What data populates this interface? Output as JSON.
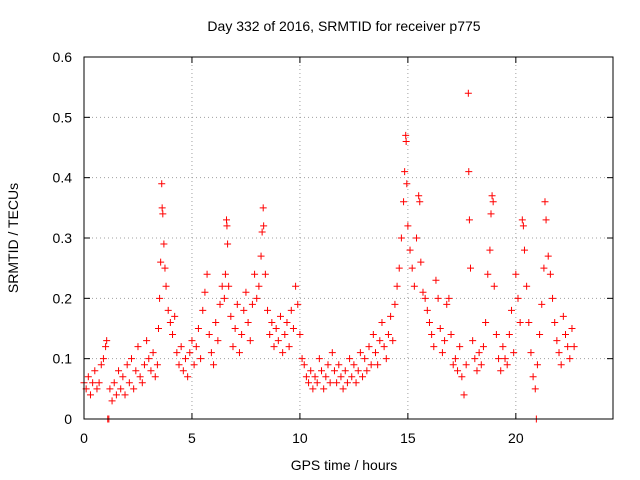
{
  "chart_data": {
    "type": "scatter",
    "title": "Day 332 of 2016, SRMTID for receiver p775",
    "xlabel": "GPS time / hours",
    "ylabel": "SRMTID / TECUs",
    "xlim": [
      0,
      24.5
    ],
    "ylim": [
      0,
      0.6
    ],
    "xticks": [
      0,
      5,
      10,
      15,
      20
    ],
    "xtick_labels": [
      "0",
      "5",
      "10",
      "15",
      "20"
    ],
    "yticks": [
      0,
      0.1,
      0.2,
      0.3,
      0.4,
      0.5,
      0.6
    ],
    "ytick_labels": [
      "0",
      "0.1",
      "0.2",
      "0.3",
      "0.4",
      "0.5",
      "0.6"
    ],
    "grid": true,
    "marker": "+",
    "color": "#ff0000",
    "series": [
      {
        "name": "SRMTID",
        "points": [
          [
            0.0,
            0.06
          ],
          [
            0.1,
            0.05
          ],
          [
            0.2,
            0.07
          ],
          [
            0.3,
            0.04
          ],
          [
            0.4,
            0.06
          ],
          [
            0.5,
            0.08
          ],
          [
            0.6,
            0.05
          ],
          [
            0.7,
            0.06
          ],
          [
            0.8,
            0.09
          ],
          [
            0.9,
            0.1
          ],
          [
            1.0,
            0.12
          ],
          [
            1.05,
            0.13
          ],
          [
            1.1,
            0.0
          ],
          [
            1.15,
            0.0
          ],
          [
            1.2,
            0.05
          ],
          [
            1.3,
            0.03
          ],
          [
            1.4,
            0.06
          ],
          [
            1.5,
            0.04
          ],
          [
            1.6,
            0.08
          ],
          [
            1.7,
            0.05
          ],
          [
            1.8,
            0.07
          ],
          [
            1.9,
            0.04
          ],
          [
            2.0,
            0.09
          ],
          [
            2.1,
            0.06
          ],
          [
            2.2,
            0.1
          ],
          [
            2.3,
            0.05
          ],
          [
            2.4,
            0.08
          ],
          [
            2.5,
            0.12
          ],
          [
            2.6,
            0.07
          ],
          [
            2.7,
            0.06
          ],
          [
            2.8,
            0.09
          ],
          [
            2.9,
            0.13
          ],
          [
            3.0,
            0.1
          ],
          [
            3.1,
            0.08
          ],
          [
            3.2,
            0.11
          ],
          [
            3.3,
            0.07
          ],
          [
            3.4,
            0.09
          ],
          [
            3.45,
            0.15
          ],
          [
            3.5,
            0.2
          ],
          [
            3.55,
            0.26
          ],
          [
            3.6,
            0.39
          ],
          [
            3.62,
            0.35
          ],
          [
            3.65,
            0.34
          ],
          [
            3.7,
            0.29
          ],
          [
            3.75,
            0.25
          ],
          [
            3.8,
            0.22
          ],
          [
            3.9,
            0.18
          ],
          [
            4.0,
            0.16
          ],
          [
            4.1,
            0.14
          ],
          [
            4.2,
            0.17
          ],
          [
            4.3,
            0.11
          ],
          [
            4.4,
            0.09
          ],
          [
            4.5,
            0.12
          ],
          [
            4.6,
            0.08
          ],
          [
            4.7,
            0.1
          ],
          [
            4.8,
            0.07
          ],
          [
            4.9,
            0.11
          ],
          [
            5.0,
            0.13
          ],
          [
            5.1,
            0.09
          ],
          [
            5.2,
            0.12
          ],
          [
            5.3,
            0.15
          ],
          [
            5.4,
            0.1
          ],
          [
            5.5,
            0.18
          ],
          [
            5.6,
            0.21
          ],
          [
            5.7,
            0.24
          ],
          [
            5.8,
            0.14
          ],
          [
            5.9,
            0.11
          ],
          [
            6.0,
            0.09
          ],
          [
            6.1,
            0.16
          ],
          [
            6.2,
            0.13
          ],
          [
            6.3,
            0.19
          ],
          [
            6.4,
            0.22
          ],
          [
            6.5,
            0.2
          ],
          [
            6.55,
            0.24
          ],
          [
            6.6,
            0.33
          ],
          [
            6.62,
            0.32
          ],
          [
            6.65,
            0.29
          ],
          [
            6.7,
            0.22
          ],
          [
            6.8,
            0.17
          ],
          [
            6.9,
            0.12
          ],
          [
            7.0,
            0.15
          ],
          [
            7.1,
            0.19
          ],
          [
            7.2,
            0.11
          ],
          [
            7.3,
            0.14
          ],
          [
            7.4,
            0.18
          ],
          [
            7.5,
            0.21
          ],
          [
            7.6,
            0.16
          ],
          [
            7.7,
            0.13
          ],
          [
            7.8,
            0.19
          ],
          [
            7.9,
            0.24
          ],
          [
            8.0,
            0.2
          ],
          [
            8.1,
            0.22
          ],
          [
            8.2,
            0.27
          ],
          [
            8.25,
            0.31
          ],
          [
            8.3,
            0.35
          ],
          [
            8.32,
            0.32
          ],
          [
            8.4,
            0.24
          ],
          [
            8.5,
            0.18
          ],
          [
            8.6,
            0.14
          ],
          [
            8.7,
            0.16
          ],
          [
            8.8,
            0.12
          ],
          [
            8.9,
            0.15
          ],
          [
            9.0,
            0.13
          ],
          [
            9.1,
            0.17
          ],
          [
            9.2,
            0.11
          ],
          [
            9.3,
            0.14
          ],
          [
            9.4,
            0.16
          ],
          [
            9.5,
            0.12
          ],
          [
            9.6,
            0.18
          ],
          [
            9.7,
            0.15
          ],
          [
            9.8,
            0.22
          ],
          [
            9.9,
            0.19
          ],
          [
            10.0,
            0.14
          ],
          [
            10.1,
            0.1
          ],
          [
            10.2,
            0.09
          ],
          [
            10.3,
            0.07
          ],
          [
            10.4,
            0.06
          ],
          [
            10.5,
            0.08
          ],
          [
            10.6,
            0.05
          ],
          [
            10.7,
            0.07
          ],
          [
            10.8,
            0.06
          ],
          [
            10.9,
            0.1
          ],
          [
            11.0,
            0.08
          ],
          [
            11.1,
            0.05
          ],
          [
            11.2,
            0.07
          ],
          [
            11.3,
            0.09
          ],
          [
            11.4,
            0.06
          ],
          [
            11.5,
            0.11
          ],
          [
            11.6,
            0.08
          ],
          [
            11.7,
            0.06
          ],
          [
            11.8,
            0.09
          ],
          [
            11.9,
            0.07
          ],
          [
            12.0,
            0.05
          ],
          [
            12.1,
            0.08
          ],
          [
            12.2,
            0.06
          ],
          [
            12.3,
            0.1
          ],
          [
            12.4,
            0.07
          ],
          [
            12.5,
            0.09
          ],
          [
            12.6,
            0.06
          ],
          [
            12.7,
            0.08
          ],
          [
            12.8,
            0.11
          ],
          [
            12.9,
            0.07
          ],
          [
            13.0,
            0.1
          ],
          [
            13.1,
            0.08
          ],
          [
            13.2,
            0.12
          ],
          [
            13.3,
            0.09
          ],
          [
            13.4,
            0.14
          ],
          [
            13.5,
            0.11
          ],
          [
            13.6,
            0.09
          ],
          [
            13.7,
            0.13
          ],
          [
            13.8,
            0.16
          ],
          [
            13.9,
            0.12
          ],
          [
            14.0,
            0.1
          ],
          [
            14.1,
            0.14
          ],
          [
            14.2,
            0.17
          ],
          [
            14.3,
            0.13
          ],
          [
            14.4,
            0.19
          ],
          [
            14.5,
            0.22
          ],
          [
            14.6,
            0.25
          ],
          [
            14.7,
            0.3
          ],
          [
            14.8,
            0.36
          ],
          [
            14.85,
            0.41
          ],
          [
            14.9,
            0.47
          ],
          [
            14.92,
            0.46
          ],
          [
            14.95,
            0.39
          ],
          [
            15.0,
            0.32
          ],
          [
            15.1,
            0.28
          ],
          [
            15.2,
            0.25
          ],
          [
            15.3,
            0.22
          ],
          [
            15.4,
            0.3
          ],
          [
            15.5,
            0.37
          ],
          [
            15.55,
            0.36
          ],
          [
            15.6,
            0.26
          ],
          [
            15.7,
            0.21
          ],
          [
            15.8,
            0.2
          ],
          [
            15.9,
            0.18
          ],
          [
            16.0,
            0.16
          ],
          [
            16.1,
            0.14
          ],
          [
            16.2,
            0.12
          ],
          [
            16.3,
            0.23
          ],
          [
            16.4,
            0.2
          ],
          [
            16.5,
            0.15
          ],
          [
            16.6,
            0.11
          ],
          [
            16.7,
            0.13
          ],
          [
            16.8,
            0.19
          ],
          [
            16.9,
            0.2
          ],
          [
            17.0,
            0.14
          ],
          [
            17.1,
            0.09
          ],
          [
            17.2,
            0.1
          ],
          [
            17.3,
            0.08
          ],
          [
            17.4,
            0.12
          ],
          [
            17.5,
            0.07
          ],
          [
            17.6,
            0.04
          ],
          [
            17.7,
            0.09
          ],
          [
            17.8,
            0.54
          ],
          [
            17.82,
            0.41
          ],
          [
            17.85,
            0.33
          ],
          [
            17.9,
            0.25
          ],
          [
            18.0,
            0.13
          ],
          [
            18.1,
            0.1
          ],
          [
            18.2,
            0.08
          ],
          [
            18.3,
            0.11
          ],
          [
            18.4,
            0.09
          ],
          [
            18.5,
            0.12
          ],
          [
            18.6,
            0.16
          ],
          [
            18.7,
            0.24
          ],
          [
            18.8,
            0.28
          ],
          [
            18.85,
            0.34
          ],
          [
            18.9,
            0.37
          ],
          [
            18.95,
            0.36
          ],
          [
            19.0,
            0.22
          ],
          [
            19.1,
            0.14
          ],
          [
            19.2,
            0.1
          ],
          [
            19.3,
            0.08
          ],
          [
            19.4,
            0.12
          ],
          [
            19.5,
            0.1
          ],
          [
            19.6,
            0.09
          ],
          [
            19.7,
            0.14
          ],
          [
            19.8,
            0.18
          ],
          [
            19.9,
            0.11
          ],
          [
            20.0,
            0.24
          ],
          [
            20.1,
            0.2
          ],
          [
            20.2,
            0.16
          ],
          [
            20.3,
            0.33
          ],
          [
            20.35,
            0.32
          ],
          [
            20.4,
            0.28
          ],
          [
            20.5,
            0.22
          ],
          [
            20.6,
            0.16
          ],
          [
            20.7,
            0.11
          ],
          [
            20.8,
            0.07
          ],
          [
            20.9,
            0.05
          ],
          [
            20.95,
            0.0
          ],
          [
            21.0,
            0.09
          ],
          [
            21.1,
            0.14
          ],
          [
            21.2,
            0.19
          ],
          [
            21.3,
            0.25
          ],
          [
            21.35,
            0.36
          ],
          [
            21.4,
            0.33
          ],
          [
            21.5,
            0.27
          ],
          [
            21.6,
            0.24
          ],
          [
            21.7,
            0.2
          ],
          [
            21.8,
            0.16
          ],
          [
            21.9,
            0.13
          ],
          [
            22.0,
            0.11
          ],
          [
            22.1,
            0.09
          ],
          [
            22.2,
            0.17
          ],
          [
            22.3,
            0.14
          ],
          [
            22.4,
            0.12
          ],
          [
            22.5,
            0.1
          ],
          [
            22.6,
            0.15
          ],
          [
            22.7,
            0.12
          ]
        ]
      }
    ]
  }
}
